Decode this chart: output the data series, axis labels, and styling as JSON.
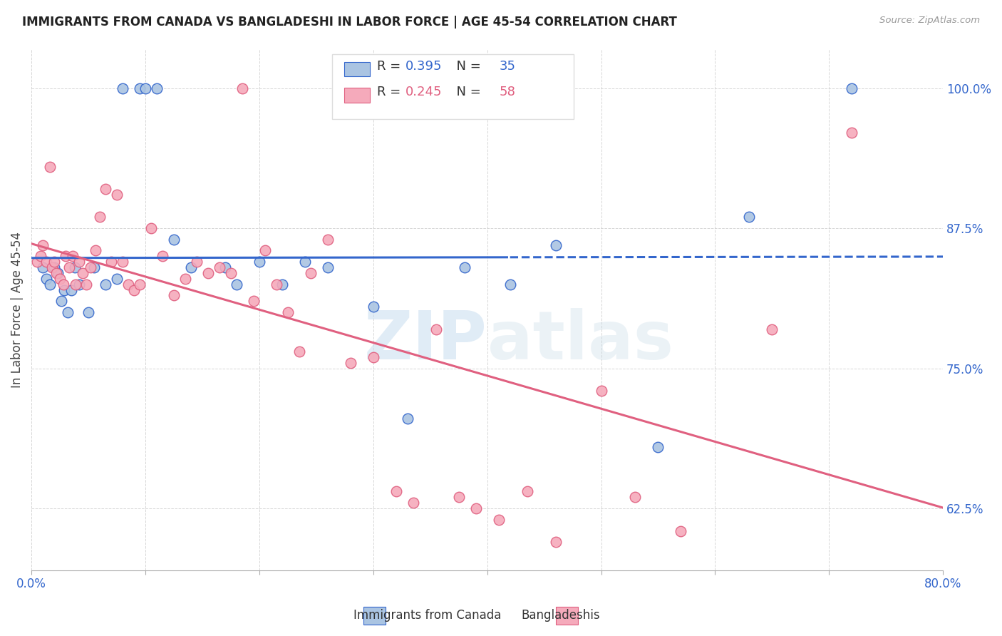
{
  "title": "IMMIGRANTS FROM CANADA VS BANGLADESHI IN LABOR FORCE | AGE 45-54 CORRELATION CHART",
  "source": "Source: ZipAtlas.com",
  "ylabel": "In Labor Force | Age 45-54",
  "legend_label1": "Immigrants from Canada",
  "legend_label2": "Bangladeshis",
  "R1": 0.395,
  "N1": 35,
  "R2": 0.245,
  "N2": 58,
  "xlim": [
    0.0,
    80.0
  ],
  "ylim": [
    57.0,
    103.5
  ],
  "yticks": [
    62.5,
    75.0,
    87.5,
    100.0
  ],
  "color_canada": "#aac4e2",
  "color_canada_line": "#3366cc",
  "color_bangla": "#f5aabb",
  "color_bangla_line": "#e06080",
  "canada_x": [
    1.0,
    1.3,
    1.6,
    2.0,
    2.3,
    2.6,
    2.9,
    3.2,
    3.5,
    3.8,
    4.2,
    5.0,
    5.5,
    6.5,
    7.5,
    8.0,
    9.5,
    10.0,
    11.0,
    12.5,
    14.0,
    17.0,
    18.0,
    20.0,
    22.0,
    24.0,
    26.0,
    30.0,
    33.0,
    38.0,
    42.0,
    46.0,
    55.0,
    63.0,
    72.0
  ],
  "canada_y": [
    84.0,
    83.0,
    82.5,
    84.0,
    83.5,
    81.0,
    82.0,
    80.0,
    82.0,
    84.0,
    82.5,
    80.0,
    84.0,
    82.5,
    83.0,
    100.0,
    100.0,
    100.0,
    100.0,
    86.5,
    84.0,
    84.0,
    82.5,
    84.5,
    82.5,
    84.5,
    84.0,
    80.5,
    70.5,
    84.0,
    82.5,
    86.0,
    68.0,
    88.5,
    100.0
  ],
  "bangla_x": [
    0.5,
    0.8,
    1.0,
    1.3,
    1.6,
    1.8,
    2.0,
    2.2,
    2.5,
    2.8,
    3.0,
    3.3,
    3.6,
    3.9,
    4.2,
    4.5,
    4.8,
    5.2,
    5.6,
    6.0,
    6.5,
    7.0,
    7.5,
    8.0,
    8.5,
    9.0,
    9.5,
    10.5,
    11.5,
    12.5,
    13.5,
    14.5,
    15.5,
    16.5,
    17.5,
    18.5,
    19.5,
    20.5,
    21.5,
    22.5,
    23.5,
    24.5,
    26.0,
    28.0,
    30.0,
    32.0,
    33.5,
    35.5,
    37.5,
    39.0,
    41.0,
    43.5,
    46.0,
    50.0,
    53.0,
    57.0,
    65.0,
    72.0
  ],
  "bangla_y": [
    84.5,
    85.0,
    86.0,
    84.5,
    93.0,
    84.0,
    84.5,
    83.5,
    83.0,
    82.5,
    85.0,
    84.0,
    85.0,
    82.5,
    84.5,
    83.5,
    82.5,
    84.0,
    85.5,
    88.5,
    91.0,
    84.5,
    90.5,
    84.5,
    82.5,
    82.0,
    82.5,
    87.5,
    85.0,
    81.5,
    83.0,
    84.5,
    83.5,
    84.0,
    83.5,
    100.0,
    81.0,
    85.5,
    82.5,
    80.0,
    76.5,
    83.5,
    86.5,
    75.5,
    76.0,
    64.0,
    63.0,
    78.5,
    63.5,
    62.5,
    61.5,
    64.0,
    59.5,
    73.0,
    63.5,
    60.5,
    78.5,
    96.0
  ]
}
